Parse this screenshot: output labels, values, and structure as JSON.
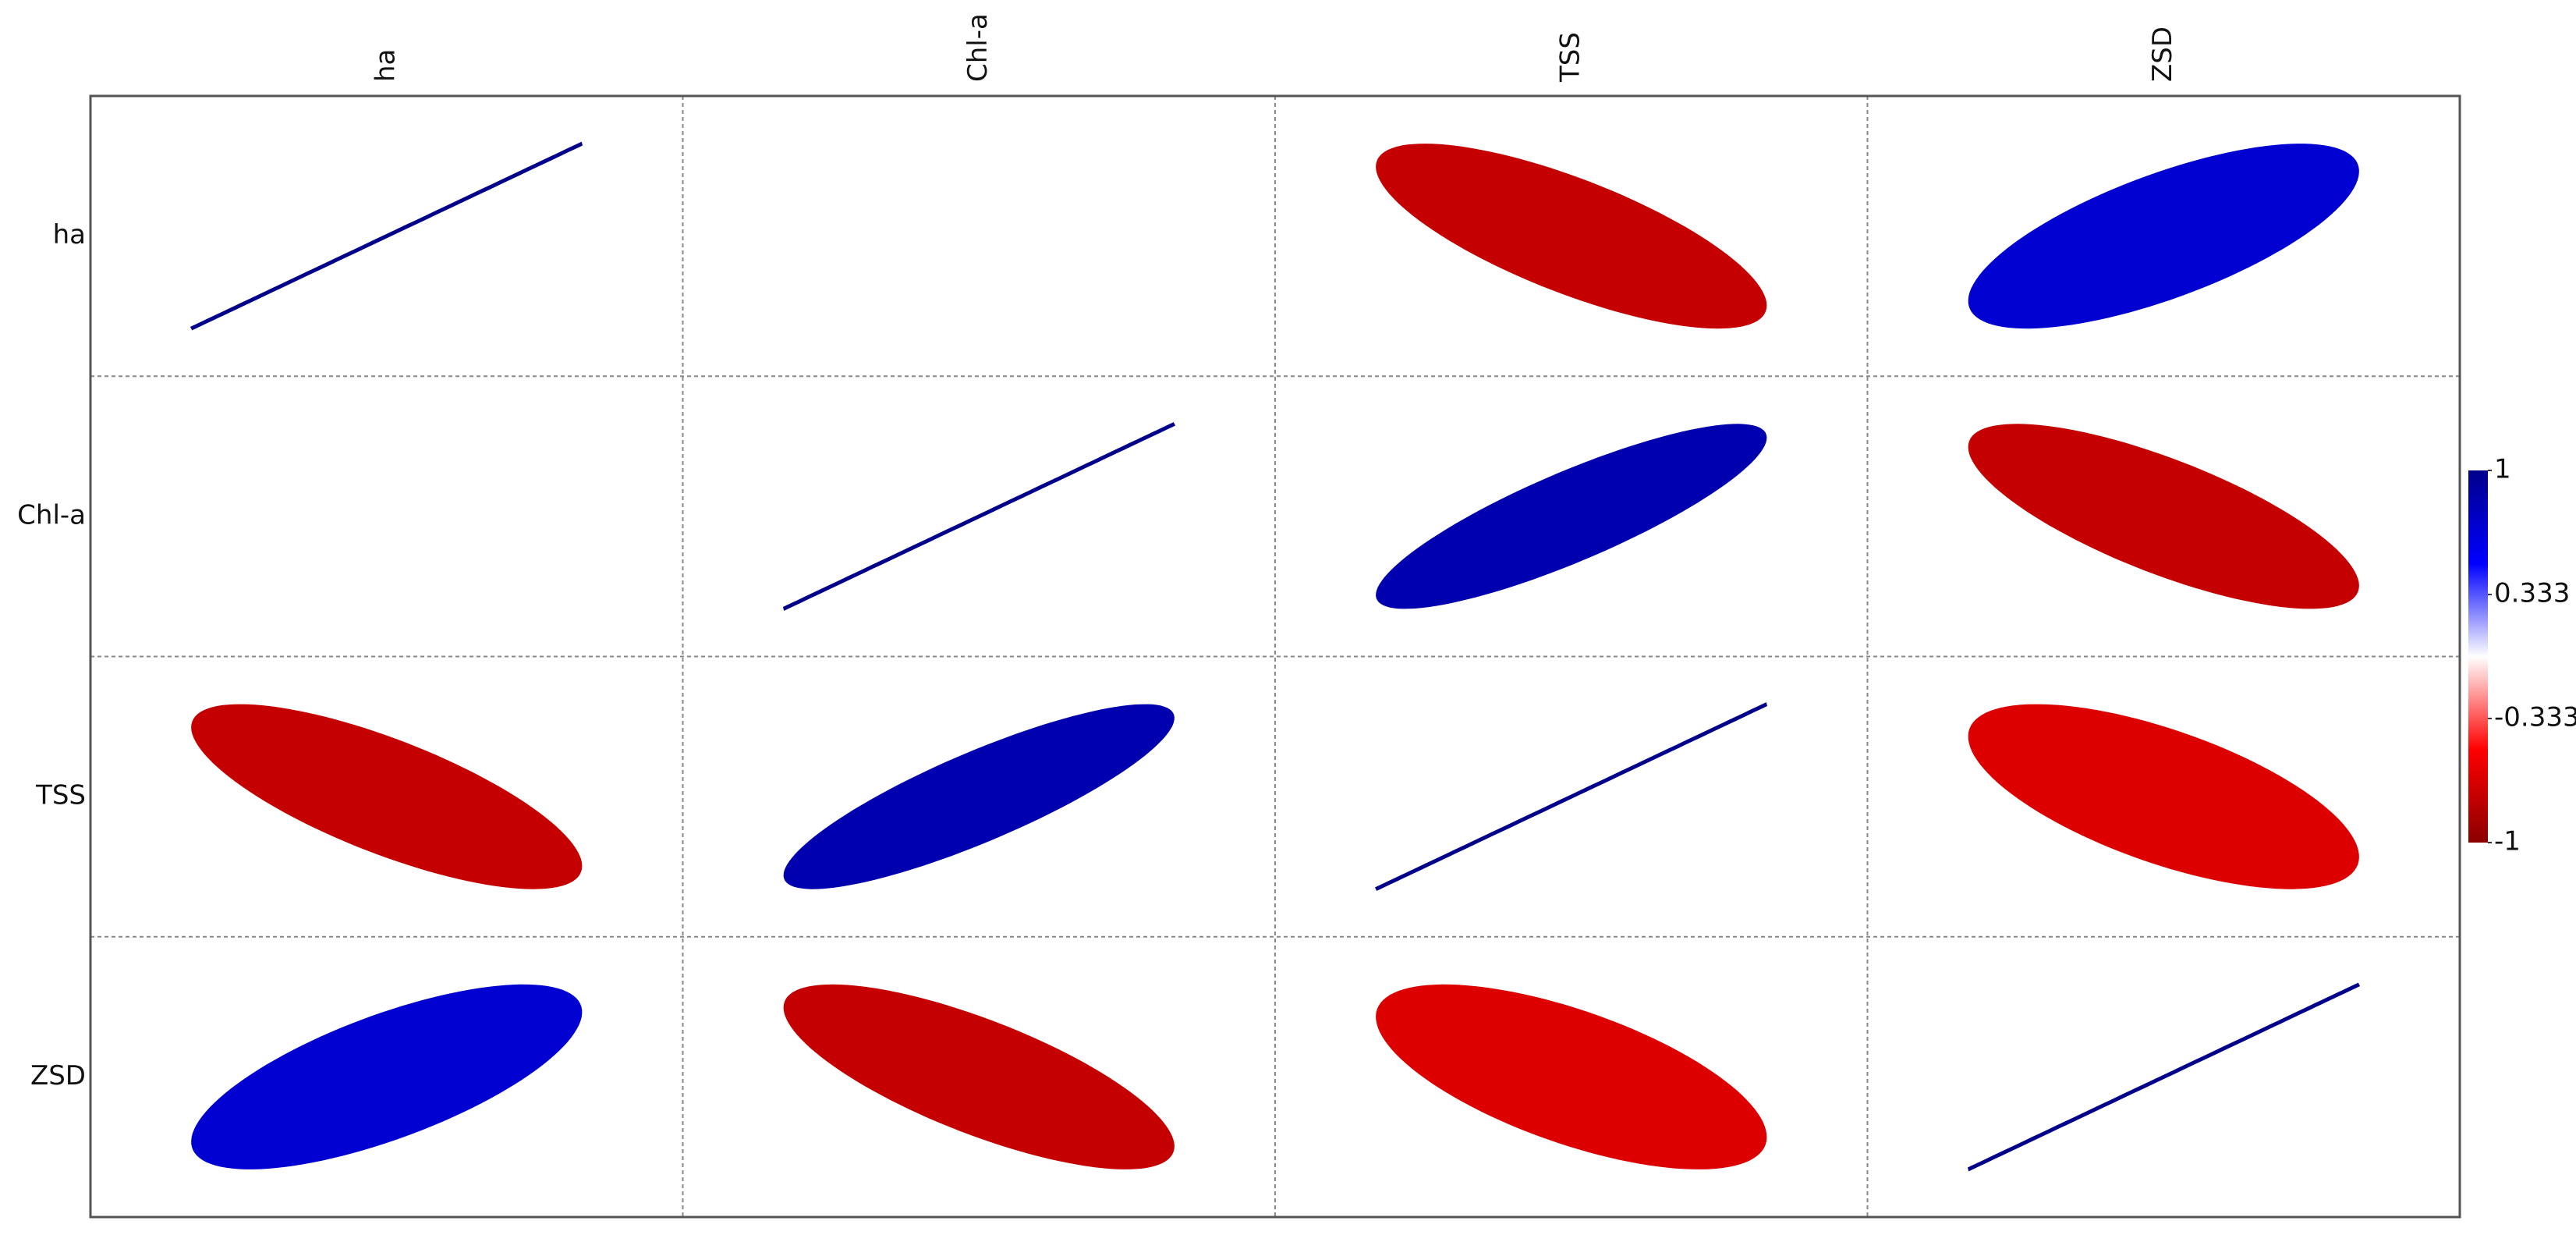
{
  "chart_data": {
    "type": "corrplot",
    "variables": [
      "ha",
      "Chl-a",
      "TSS",
      "ZSD"
    ],
    "matrix": [
      [
        1,
        0,
        -0.75,
        0.7
      ],
      [
        0,
        1,
        0.85,
        -0.75
      ],
      [
        -0.75,
        0.85,
        1,
        -0.65
      ],
      [
        0.7,
        -0.75,
        -0.65,
        1
      ]
    ],
    "colors": [
      "#8B0000",
      "#FF0000",
      "#FFFFFF",
      "#0000FF",
      "#00008B"
    ],
    "colorlim": [
      -1,
      1
    ],
    "colorticks": [
      1,
      0.333,
      -0.333,
      -1
    ]
  }
}
